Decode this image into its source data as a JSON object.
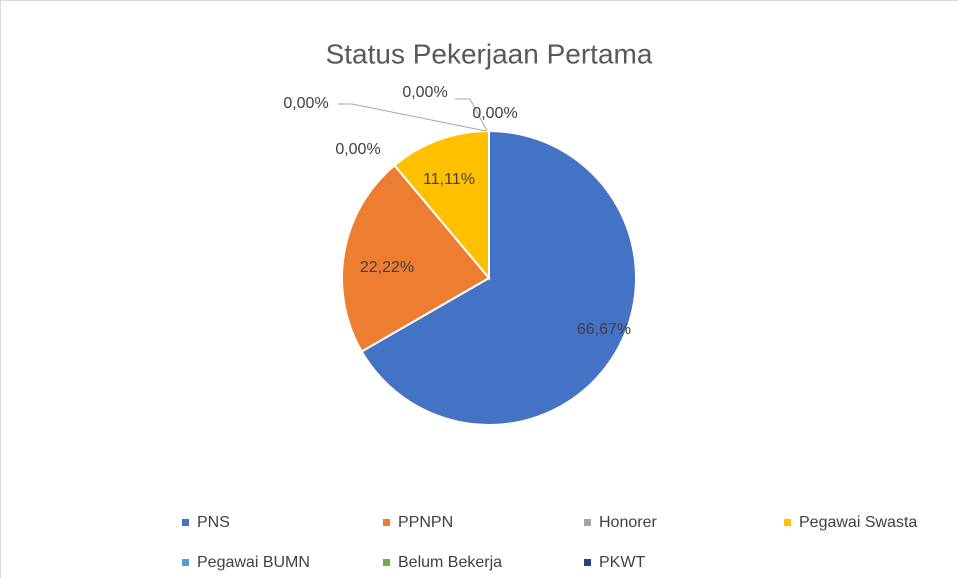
{
  "chart_data": {
    "type": "pie",
    "title": "Status Pekerjaan Pertama",
    "categories": [
      "PNS",
      "PPNPN",
      "Honorer",
      "Pegawai Swasta",
      "Pegawai BUMN",
      "Belum Bekerja",
      "PKWT"
    ],
    "values": [
      66.67,
      22.22,
      0,
      11.11,
      0,
      0,
      0
    ],
    "value_labels": [
      "66,67%",
      "22,22%",
      "0,00%",
      "11,11%",
      "0,00%",
      "0,00%",
      "0,00%"
    ],
    "colors": [
      "#4472c4",
      "#ed7d31",
      "#a5a5a5",
      "#ffc000",
      "#5b9bd5",
      "#70ad47",
      "#264478"
    ],
    "legend": "bottom"
  }
}
